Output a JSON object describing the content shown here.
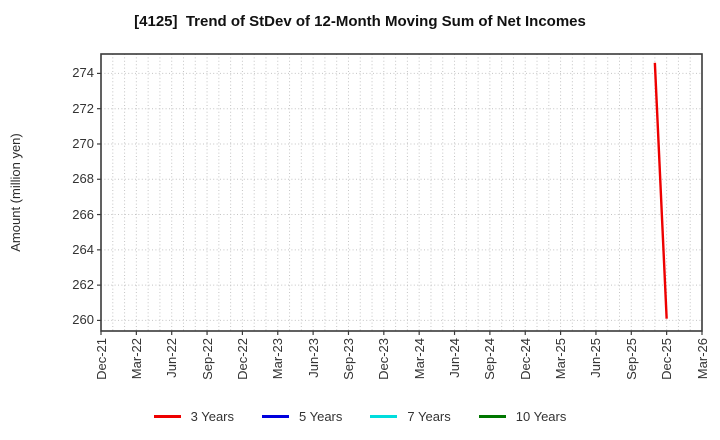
{
  "title": "[4125]  Trend of StDev of 12-Month Moving Sum of Net Incomes",
  "chart_data": {
    "type": "line",
    "title": "[4125]  Trend of StDev of 12-Month Moving Sum of Net Incomes",
    "xlabel": "",
    "ylabel": "Amount (million yen)",
    "x_axis": {
      "start_label": "Dec-21",
      "end_label": "Mar-26",
      "months_span": 51,
      "tick_interval_months": 3,
      "tick_labels": [
        "Dec-21",
        "Mar-22",
        "Jun-22",
        "Sep-22",
        "Dec-22",
        "Mar-23",
        "Jun-23",
        "Sep-23",
        "Dec-23",
        "Mar-24",
        "Jun-24",
        "Sep-24",
        "Dec-24",
        "Mar-25",
        "Jun-25",
        "Sep-25",
        "Dec-25",
        "Mar-26"
      ]
    },
    "y_axis": {
      "ticks": [
        260,
        262,
        264,
        266,
        268,
        270,
        272,
        274
      ],
      "ylim": [
        259.4,
        275.1
      ]
    },
    "grid": {
      "vertical": "monthly dotted",
      "horizontal": "major dotted",
      "color": "#c4c4c4"
    },
    "frame_color": "#3a3a3a",
    "series": [
      {
        "name": "3 Years",
        "color": "#ee0000",
        "points": [
          {
            "x": "Nov-25",
            "month_index": 47,
            "y": 274.6
          },
          {
            "x": "Dec-25",
            "month_index": 48,
            "y": 260.1
          }
        ]
      },
      {
        "name": "5 Years",
        "color": "#0000dd",
        "points": []
      },
      {
        "name": "7 Years",
        "color": "#00dddd",
        "points": []
      },
      {
        "name": "10 Years",
        "color": "#007700",
        "points": []
      }
    ],
    "legend_position": "bottom-center"
  }
}
